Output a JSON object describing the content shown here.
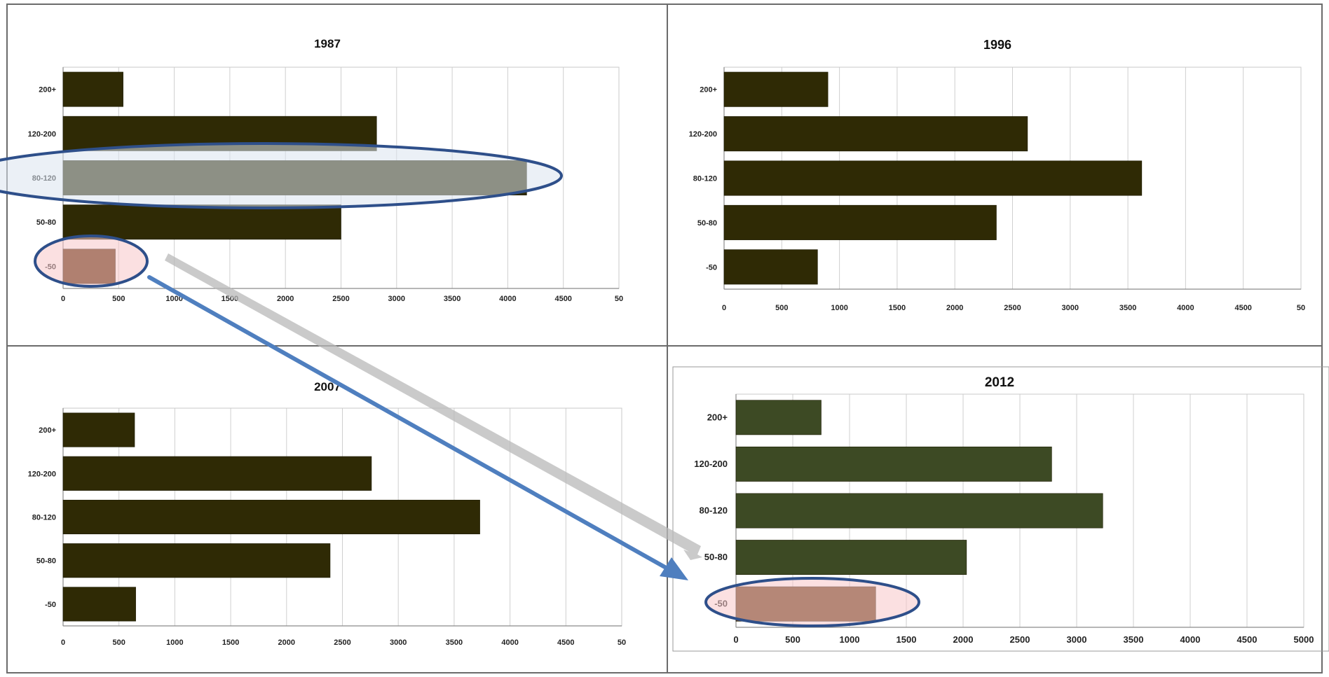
{
  "chart_data": [
    {
      "type": "bar",
      "orientation": "horizontal",
      "title": "1987",
      "categories": [
        "200+",
        "120-200",
        "80-120",
        "50-80",
        "-50"
      ],
      "values": [
        540,
        2820,
        4170,
        2500,
        470
      ],
      "xlim": [
        0,
        5000
      ],
      "xticks": [
        "0",
        "500",
        "1000",
        "1500",
        "2000",
        "2500",
        "3000",
        "3500",
        "4000",
        "4500",
        "50"
      ],
      "colors": {
        "bar": "#2f2a05",
        "highlight_bar": "#5a2a05"
      },
      "highlights": [
        "80-120",
        "-50"
      ]
    },
    {
      "type": "bar",
      "orientation": "horizontal",
      "title": "1996",
      "categories": [
        "200+",
        "120-200",
        "80-120",
        "50-80",
        "-50"
      ],
      "values": [
        900,
        2630,
        3620,
        2360,
        810
      ],
      "xlim": [
        0,
        5000
      ],
      "xticks": [
        "0",
        "500",
        "1000",
        "1500",
        "2000",
        "2500",
        "3000",
        "3500",
        "4000",
        "4500",
        "50"
      ],
      "colors": {
        "bar": "#2f2a05"
      }
    },
    {
      "type": "bar",
      "orientation": "horizontal",
      "title": "2007",
      "categories": [
        "200+",
        "120-200",
        "80-120",
        "50-80",
        "-50"
      ],
      "values": [
        640,
        2760,
        3730,
        2390,
        650
      ],
      "xlim": [
        0,
        5000
      ],
      "xticks": [
        "0",
        "500",
        "1000",
        "1500",
        "2000",
        "2500",
        "3000",
        "3500",
        "4000",
        "4500",
        "50"
      ],
      "colors": {
        "bar": "#2f2a05"
      }
    },
    {
      "type": "bar",
      "orientation": "horizontal",
      "title": "2012",
      "categories": [
        "200+",
        "120-200",
        "80-120",
        "50-80",
        "-50"
      ],
      "values": [
        750,
        2780,
        3230,
        2030,
        1230
      ],
      "xlim": [
        0,
        5000
      ],
      "xticks": [
        "0",
        "500",
        "1000",
        "1500",
        "2000",
        "2500",
        "3000",
        "3500",
        "4000",
        "4500",
        "5000"
      ],
      "colors": {
        "bar": "#3d4a24",
        "highlight_bar": "#653a16"
      },
      "highlights": [
        "-50"
      ]
    }
  ],
  "annotations": {
    "ellipse_fill_blue": "#dbe3ef",
    "ellipse_fill_pink": "#f7c6c9",
    "ellipse_stroke": "#2e4f8a",
    "arrow_blue": "#4f7fbf",
    "arrow_gray": "#b8b8b8"
  }
}
